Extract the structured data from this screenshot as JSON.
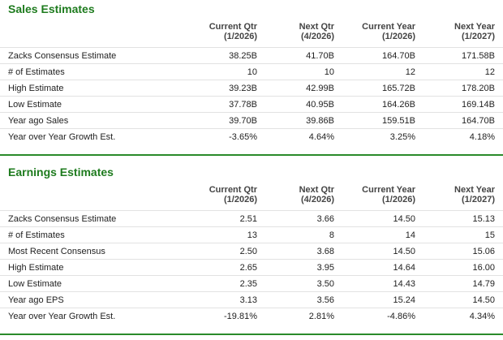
{
  "sections": [
    {
      "title": "Sales Estimates",
      "columns": [
        {
          "name": "Current Qtr",
          "period": "(1/2026)"
        },
        {
          "name": "Next Qtr",
          "period": "(4/2026)"
        },
        {
          "name": "Current Year",
          "period": "(1/2026)"
        },
        {
          "name": "Next Year",
          "period": "(1/2027)"
        }
      ],
      "rows": [
        [
          "Zacks Consensus Estimate",
          "38.25B",
          "41.70B",
          "164.70B",
          "171.58B"
        ],
        [
          "# of Estimates",
          "10",
          "10",
          "12",
          "12"
        ],
        [
          "High Estimate",
          "39.23B",
          "42.99B",
          "165.72B",
          "178.20B"
        ],
        [
          "Low Estimate",
          "37.78B",
          "40.95B",
          "164.26B",
          "169.14B"
        ],
        [
          "Year ago Sales",
          "39.70B",
          "39.86B",
          "159.51B",
          "164.70B"
        ],
        [
          "Year over Year Growth Est.",
          "-3.65%",
          "4.64%",
          "3.25%",
          "4.18%"
        ]
      ]
    },
    {
      "title": "Earnings Estimates",
      "columns": [
        {
          "name": "Current Qtr",
          "period": "(1/2026)"
        },
        {
          "name": "Next Qtr",
          "period": "(4/2026)"
        },
        {
          "name": "Current Year",
          "period": "(1/2026)"
        },
        {
          "name": "Next Year",
          "period": "(1/2027)"
        }
      ],
      "rows": [
        [
          "Zacks Consensus Estimate",
          "2.51",
          "3.66",
          "14.50",
          "15.13"
        ],
        [
          "# of Estimates",
          "13",
          "8",
          "14",
          "15"
        ],
        [
          "Most Recent Consensus",
          "2.50",
          "3.68",
          "14.50",
          "15.06"
        ],
        [
          "High Estimate",
          "2.65",
          "3.95",
          "14.64",
          "16.00"
        ],
        [
          "Low Estimate",
          "2.35",
          "3.50",
          "14.43",
          "14.79"
        ],
        [
          "Year ago EPS",
          "3.13",
          "3.56",
          "15.24",
          "14.50"
        ],
        [
          "Year over Year Growth Est.",
          "-19.81%",
          "2.81%",
          "-4.86%",
          "4.34%"
        ]
      ]
    }
  ]
}
